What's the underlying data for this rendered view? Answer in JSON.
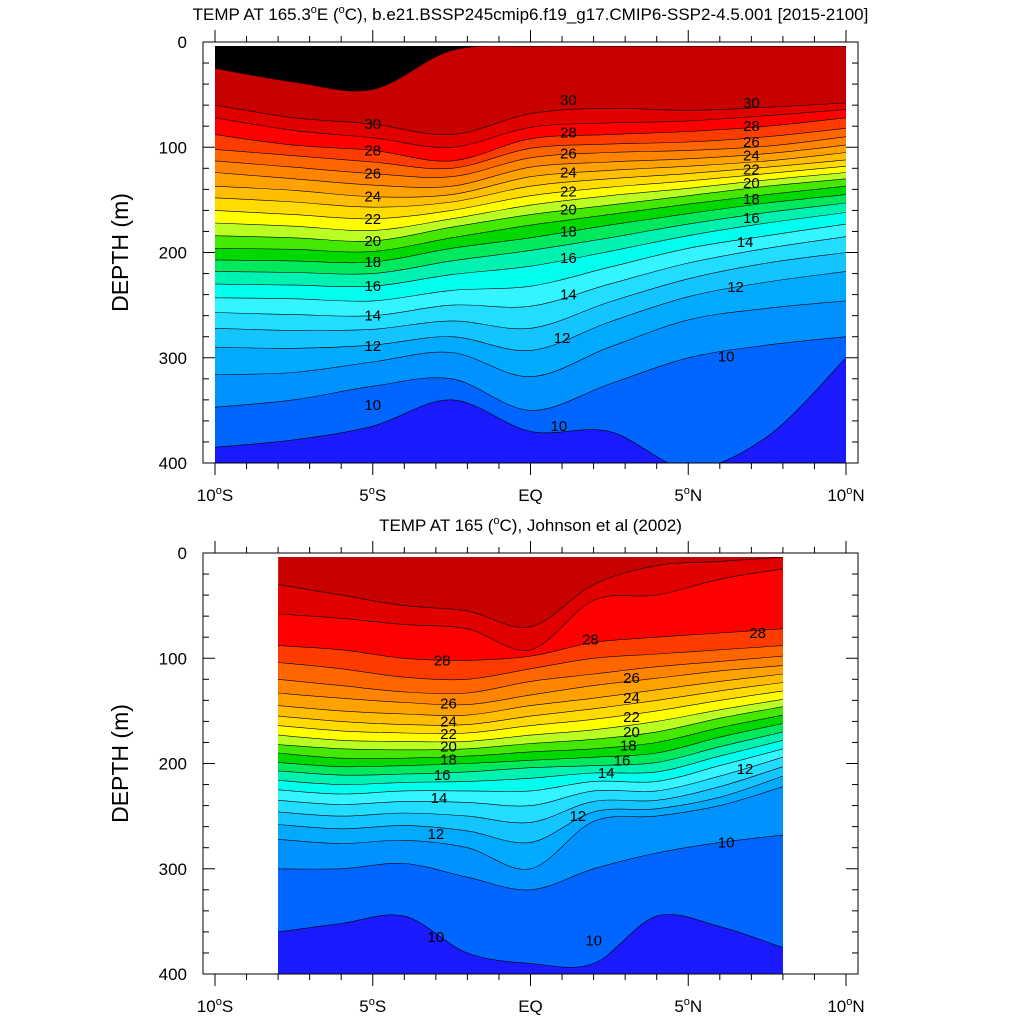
{
  "chart_data": [
    {
      "type": "contour",
      "title": "TEMP AT 165.3°E (°C), b.e21.BSSP245cmip6.f19_g17.CMIP6-SSP2-4.5.001 [2015-2100]",
      "ylabel": "DEPTH (m)",
      "xlabel": "",
      "xlim": [
        -10,
        10
      ],
      "ylim": [
        400,
        0
      ],
      "x_ticks": [
        -10,
        -5,
        0,
        5,
        10
      ],
      "x_tick_labels": [
        "10°S",
        "5°S",
        "EQ",
        "5°N",
        "10°N"
      ],
      "y_ticks": [
        0,
        100,
        200,
        300,
        400
      ],
      "y_tick_labels": [
        "0",
        "100",
        "200",
        "300",
        "400"
      ],
      "data_extent": [
        -10,
        10
      ],
      "x": [
        -10,
        -7.5,
        -5,
        -2.5,
        0,
        2.5,
        5,
        7.5,
        10
      ],
      "levels": [
        9,
        10,
        11,
        12,
        13,
        14,
        15,
        16,
        17,
        18,
        19,
        20,
        21,
        22,
        23,
        24,
        25,
        26,
        27,
        28,
        29,
        30,
        31
      ],
      "isotherm_depths": [
        {
          "temp": 31,
          "depth": [
            25,
            38,
            45,
            8,
            4,
            4,
            4,
            4,
            4
          ]
        },
        {
          "temp": 30,
          "depth": [
            60,
            72,
            78,
            88,
            68,
            63,
            65,
            62,
            58
          ]
        },
        {
          "temp": 29,
          "depth": [
            72,
            84,
            91,
            100,
            81,
            77,
            75,
            70,
            64
          ]
        },
        {
          "temp": 28,
          "depth": [
            88,
            98,
            103,
            113,
            92,
            88,
            85,
            80,
            72
          ]
        },
        {
          "temp": 27,
          "depth": [
            102,
            108,
            114,
            120,
            101,
            97,
            95,
            90,
            82
          ]
        },
        {
          "temp": 26,
          "depth": [
            113,
            119,
            125,
            128,
            110,
            105,
            103,
            99,
            90
          ]
        },
        {
          "temp": 25,
          "depth": [
            124,
            130,
            136,
            137,
            119,
            114,
            111,
            106,
            98
          ]
        },
        {
          "temp": 24,
          "depth": [
            137,
            141,
            147,
            145,
            128,
            122,
            118,
            113,
            105
          ]
        },
        {
          "temp": 23,
          "depth": [
            148,
            152,
            157,
            152,
            137,
            130,
            125,
            119,
            112
          ]
        },
        {
          "temp": 22,
          "depth": [
            160,
            164,
            168,
            160,
            146,
            138,
            132,
            125,
            118
          ]
        },
        {
          "temp": 21,
          "depth": [
            172,
            175,
            179,
            168,
            155,
            146,
            139,
            131,
            124
          ]
        },
        {
          "temp": 20,
          "depth": [
            184,
            186,
            189,
            176,
            164,
            155,
            146,
            137,
            130
          ]
        },
        {
          "temp": 19,
          "depth": [
            196,
            197,
            199,
            186,
            174,
            164,
            154,
            145,
            137
          ]
        },
        {
          "temp": 18,
          "depth": [
            207,
            208,
            209,
            196,
            186,
            174,
            163,
            153,
            145
          ]
        },
        {
          "temp": 17,
          "depth": [
            218,
            219,
            220,
            208,
            198,
            186,
            173,
            162,
            153
          ]
        },
        {
          "temp": 16,
          "depth": [
            230,
            231,
            232,
            221,
            213,
            199,
            184,
            172,
            162
          ]
        },
        {
          "temp": 15,
          "depth": [
            243,
            244,
            246,
            236,
            232,
            214,
            196,
            184,
            173
          ]
        },
        {
          "temp": 14,
          "depth": [
            257,
            259,
            260,
            250,
            251,
            230,
            210,
            196,
            185
          ]
        },
        {
          "temp": 13,
          "depth": [
            272,
            274,
            273,
            265,
            272,
            247,
            225,
            210,
            200
          ]
        },
        {
          "temp": 12,
          "depth": [
            290,
            291,
            288,
            280,
            293,
            266,
            242,
            228,
            218
          ]
        },
        {
          "temp": 11,
          "depth": [
            316,
            314,
            304,
            295,
            318,
            290,
            264,
            253,
            246
          ]
        },
        {
          "temp": 10,
          "depth": [
            347,
            340,
            327,
            320,
            350,
            325,
            300,
            288,
            280
          ]
        },
        {
          "temp": 9,
          "depth": [
            385,
            378,
            365,
            340,
            370,
            370,
            405,
            375,
            300
          ]
        }
      ],
      "contour_labels": [
        {
          "text": "30",
          "x": -5,
          "y": 78
        },
        {
          "text": "30",
          "x": 1.2,
          "y": 55
        },
        {
          "text": "30",
          "x": 7.0,
          "y": 58
        },
        {
          "text": "28",
          "x": -5,
          "y": 103
        },
        {
          "text": "28",
          "x": 1.2,
          "y": 86
        },
        {
          "text": "28",
          "x": 7.0,
          "y": 80
        },
        {
          "text": "26",
          "x": -5,
          "y": 125
        },
        {
          "text": "26",
          "x": 1.2,
          "y": 106
        },
        {
          "text": "26",
          "x": 7.0,
          "y": 95
        },
        {
          "text": "24",
          "x": -5,
          "y": 147
        },
        {
          "text": "24",
          "x": 1.2,
          "y": 124
        },
        {
          "text": "24",
          "x": 7.0,
          "y": 108
        },
        {
          "text": "22",
          "x": -5,
          "y": 168
        },
        {
          "text": "22",
          "x": 1.2,
          "y": 142
        },
        {
          "text": "22",
          "x": 7.0,
          "y": 121
        },
        {
          "text": "20",
          "x": -5,
          "y": 189
        },
        {
          "text": "20",
          "x": 1.2,
          "y": 159
        },
        {
          "text": "20",
          "x": 7.0,
          "y": 134
        },
        {
          "text": "18",
          "x": -5,
          "y": 209
        },
        {
          "text": "18",
          "x": 1.2,
          "y": 180
        },
        {
          "text": "18",
          "x": 7.0,
          "y": 149
        },
        {
          "text": "16",
          "x": -5,
          "y": 232
        },
        {
          "text": "16",
          "x": 1.2,
          "y": 205
        },
        {
          "text": "16",
          "x": 7.0,
          "y": 167
        },
        {
          "text": "14",
          "x": -5,
          "y": 260
        },
        {
          "text": "14",
          "x": 1.2,
          "y": 240
        },
        {
          "text": "14",
          "x": 6.8,
          "y": 190
        },
        {
          "text": "12",
          "x": -5,
          "y": 289
        },
        {
          "text": "12",
          "x": 1.0,
          "y": 281
        },
        {
          "text": "12",
          "x": 6.5,
          "y": 233
        },
        {
          "text": "10",
          "x": -5,
          "y": 345
        },
        {
          "text": "10",
          "x": 0.9,
          "y": 365
        },
        {
          "text": "10",
          "x": 6.2,
          "y": 299
        }
      ]
    },
    {
      "type": "contour",
      "title": "TEMP AT 165 (°C), Johnson et al (2002)",
      "ylabel": "DEPTH (m)",
      "xlabel": "",
      "xlim": [
        -10,
        10
      ],
      "ylim": [
        400,
        0
      ],
      "x_ticks": [
        -10,
        -5,
        0,
        5,
        10
      ],
      "x_tick_labels": [
        "10°S",
        "5°S",
        "EQ",
        "5°N",
        "10°N"
      ],
      "y_ticks": [
        0,
        100,
        200,
        300,
        400
      ],
      "y_tick_labels": [
        "0",
        "100",
        "200",
        "300",
        "400"
      ],
      "data_extent": [
        -8,
        8
      ],
      "x": [
        -8,
        -6,
        -4,
        -2,
        0,
        2,
        4,
        6,
        8
      ],
      "levels": [
        9,
        10,
        11,
        12,
        13,
        14,
        15,
        16,
        17,
        18,
        19,
        20,
        21,
        22,
        23,
        24,
        25,
        26,
        27,
        28,
        29,
        30
      ],
      "isotherm_depths": [
        {
          "temp": 30,
          "depth": [
            30,
            40,
            50,
            55,
            70,
            30,
            12,
            8,
            4
          ]
        },
        {
          "temp": 29,
          "depth": [
            58,
            62,
            68,
            72,
            92,
            45,
            40,
            25,
            15
          ]
        },
        {
          "temp": 28,
          "depth": [
            88,
            92,
            100,
            102,
            98,
            85,
            80,
            76,
            72
          ]
        },
        {
          "temp": 27,
          "depth": [
            104,
            110,
            118,
            120,
            110,
            100,
            96,
            92,
            88
          ]
        },
        {
          "temp": 26,
          "depth": [
            120,
            126,
            132,
            133,
            122,
            115,
            108,
            103,
            98
          ]
        },
        {
          "temp": 25,
          "depth": [
            133,
            138,
            142,
            144,
            135,
            126,
            119,
            112,
            107
          ]
        },
        {
          "temp": 24,
          "depth": [
            145,
            150,
            153,
            154,
            145,
            138,
            130,
            122,
            115
          ]
        },
        {
          "temp": 23,
          "depth": [
            155,
            160,
            163,
            163,
            155,
            148,
            140,
            131,
            123
          ]
        },
        {
          "temp": 22,
          "depth": [
            164,
            169,
            171,
            171,
            164,
            158,
            150,
            140,
            131
          ]
        },
        {
          "temp": 21,
          "depth": [
            173,
            178,
            179,
            179,
            173,
            168,
            160,
            149,
            139
          ]
        },
        {
          "temp": 20,
          "depth": [
            182,
            186,
            187,
            186,
            181,
            177,
            170,
            157,
            146
          ]
        },
        {
          "temp": 19,
          "depth": [
            190,
            195,
            195,
            193,
            189,
            186,
            180,
            166,
            154
          ]
        },
        {
          "temp": 18,
          "depth": [
            199,
            203,
            202,
            200,
            197,
            194,
            190,
            175,
            162
          ]
        },
        {
          "temp": 17,
          "depth": [
            207,
            211,
            210,
            208,
            204,
            202,
            199,
            184,
            170
          ]
        },
        {
          "temp": 16,
          "depth": [
            216,
            220,
            218,
            217,
            214,
            209,
            208,
            193,
            178
          ]
        },
        {
          "temp": 15,
          "depth": [
            225,
            229,
            226,
            226,
            226,
            217,
            217,
            202,
            186
          ]
        },
        {
          "temp": 14,
          "depth": [
            235,
            239,
            236,
            237,
            240,
            226,
            226,
            212,
            194
          ]
        },
        {
          "temp": 13,
          "depth": [
            246,
            250,
            247,
            250,
            256,
            236,
            235,
            222,
            203
          ]
        },
        {
          "temp": 12,
          "depth": [
            258,
            262,
            259,
            264,
            275,
            246,
            243,
            232,
            212
          ]
        },
        {
          "temp": 11,
          "depth": [
            272,
            276,
            273,
            280,
            300,
            255,
            250,
            240,
            222
          ]
        },
        {
          "temp": 10,
          "depth": [
            300,
            300,
            295,
            308,
            320,
            300,
            285,
            275,
            268
          ]
        },
        {
          "temp": 9,
          "depth": [
            360,
            352,
            345,
            380,
            390,
            390,
            345,
            355,
            375
          ]
        }
      ],
      "contour_labels": [
        {
          "text": "28",
          "x": -2.8,
          "y": 102
        },
        {
          "text": "28",
          "x": 1.9,
          "y": 82
        },
        {
          "text": "28",
          "x": 7.2,
          "y": 76
        },
        {
          "text": "26",
          "x": -2.6,
          "y": 143
        },
        {
          "text": "26",
          "x": 3.2,
          "y": 119
        },
        {
          "text": "24",
          "x": -2.6,
          "y": 160
        },
        {
          "text": "24",
          "x": 3.2,
          "y": 138
        },
        {
          "text": "22",
          "x": -2.6,
          "y": 172
        },
        {
          "text": "22",
          "x": 3.2,
          "y": 156
        },
        {
          "text": "20",
          "x": -2.6,
          "y": 184
        },
        {
          "text": "20",
          "x": 3.2,
          "y": 170
        },
        {
          "text": "18",
          "x": -2.6,
          "y": 196
        },
        {
          "text": "18",
          "x": 3.1,
          "y": 183
        },
        {
          "text": "16",
          "x": -2.8,
          "y": 211
        },
        {
          "text": "16",
          "x": 2.9,
          "y": 197
        },
        {
          "text": "14",
          "x": -2.9,
          "y": 233
        },
        {
          "text": "14",
          "x": 2.4,
          "y": 209
        },
        {
          "text": "12",
          "x": -3.0,
          "y": 267
        },
        {
          "text": "12",
          "x": 1.5,
          "y": 250
        },
        {
          "text": "12",
          "x": 6.8,
          "y": 205
        },
        {
          "text": "10",
          "x": -3.0,
          "y": 365
        },
        {
          "text": "10",
          "x": 2.0,
          "y": 368
        },
        {
          "text": "10",
          "x": 6.2,
          "y": 275
        }
      ]
    }
  ],
  "colors": {
    "30": "#c70000",
    "29": "#e10000",
    "28": "#ff0000",
    "27": "#ff3c00",
    "26": "#ff6600",
    "25": "#ff8400",
    "24": "#ffa200",
    "23": "#ffbe00",
    "22": "#ffdb00",
    "21": "#ffff00",
    "20": "#bbff22",
    "19": "#44e800",
    "18": "#00d900",
    "17": "#00e85c",
    "16": "#00f2b0",
    "15": "#00ffee",
    "14": "#33f4ff",
    "13": "#22ddff",
    "12": "#14c4ff",
    "11": "#00aaff",
    "10": "#0092ff",
    "9": "#0066ff",
    "8": "#1a1aff"
  }
}
